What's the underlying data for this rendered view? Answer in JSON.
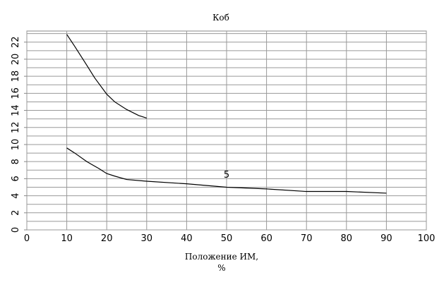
{
  "chart_data": {
    "type": "line",
    "title": "Коб",
    "xlabel": [
      "Положение ИМ,",
      "%"
    ],
    "xlim": [
      0,
      100
    ],
    "xticks": [
      0,
      10,
      20,
      30,
      40,
      50,
      60,
      70,
      80,
      90,
      100
    ],
    "ylim": [
      0,
      23.3
    ],
    "yticks": [
      0,
      2,
      4,
      6,
      8,
      10,
      12,
      14,
      16,
      18,
      20,
      22
    ],
    "ygrid": [
      0,
      1,
      2,
      3,
      4,
      5,
      6,
      7,
      8,
      9,
      10,
      11,
      12,
      13,
      14,
      15,
      16,
      17,
      18,
      19,
      20,
      21,
      22,
      23
    ],
    "grid": true,
    "series": [
      {
        "color": "#000000",
        "x": [
          10,
          12,
          15,
          17,
          20,
          22,
          25,
          28,
          30
        ],
        "values": [
          22.9,
          21.5,
          19.3,
          17.8,
          15.9,
          15,
          14.1,
          13.4,
          13.1
        ]
      },
      {
        "color": "#000000",
        "x": [
          10,
          12,
          15,
          18,
          20,
          22,
          25,
          30,
          40,
          50,
          60,
          70,
          80,
          90
        ],
        "values": [
          9.6,
          9,
          8,
          7.2,
          6.6,
          6.3,
          5.9,
          5.7,
          5.4,
          5.0,
          4.8,
          4.5,
          4.5,
          4.3
        ]
      }
    ],
    "annotations": [
      {
        "text": "5",
        "x": 50,
        "y": 6.1
      }
    ]
  }
}
